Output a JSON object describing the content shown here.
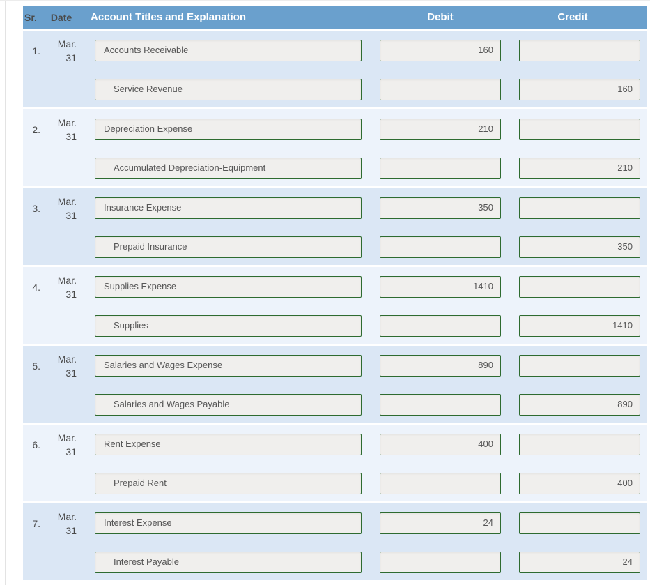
{
  "header": {
    "sr": "Sr.",
    "date": "Date",
    "account": "Account Titles and Explanation",
    "debit": "Debit",
    "credit": "Credit"
  },
  "colors": {
    "header_bg": "#6aa0cd",
    "row_odd_bg": "#dbe7f5",
    "row_even_bg": "#edf3fb",
    "field_bg": "#f0efed",
    "field_border": "#2e6b30"
  },
  "entries": [
    {
      "sr": "1.",
      "month": "Mar.",
      "day": "31",
      "debit_account": "Accounts Receivable",
      "debit_amount": "160",
      "credit_account": "Service Revenue",
      "credit_amount": "160"
    },
    {
      "sr": "2.",
      "month": "Mar.",
      "day": "31",
      "debit_account": "Depreciation Expense",
      "debit_amount": "210",
      "credit_account": "Accumulated Depreciation-Equipment",
      "credit_amount": "210"
    },
    {
      "sr": "3.",
      "month": "Mar.",
      "day": "31",
      "debit_account": "Insurance Expense",
      "debit_amount": "350",
      "credit_account": "Prepaid Insurance",
      "credit_amount": "350"
    },
    {
      "sr": "4.",
      "month": "Mar.",
      "day": "31",
      "debit_account": "Supplies Expense",
      "debit_amount": "1410",
      "credit_account": "Supplies",
      "credit_amount": "1410"
    },
    {
      "sr": "5.",
      "month": "Mar.",
      "day": "31",
      "debit_account": "Salaries and Wages Expense",
      "debit_amount": "890",
      "credit_account": "Salaries and Wages Payable",
      "credit_amount": "890"
    },
    {
      "sr": "6.",
      "month": "Mar.",
      "day": "31",
      "debit_account": "Rent Expense",
      "debit_amount": "400",
      "credit_account": "Prepaid Rent",
      "credit_amount": "400"
    },
    {
      "sr": "7.",
      "month": "Mar.",
      "day": "31",
      "debit_account": "Interest Expense",
      "debit_amount": "24",
      "credit_account": "Interest Payable",
      "credit_amount": "24"
    }
  ]
}
